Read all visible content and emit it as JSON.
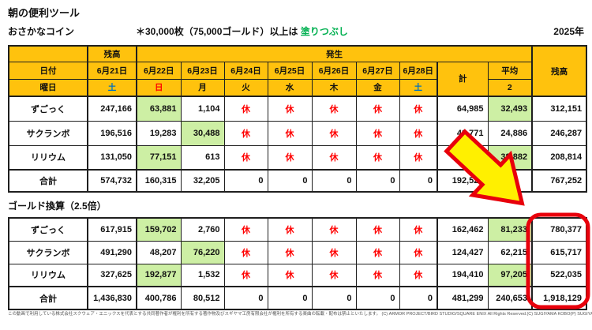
{
  "page": {
    "title": "朝の便利ツール",
    "subtitle_left": "おさかなコイン",
    "note_prefix": "＊30,000枚（75,000ゴールド）以上は ",
    "note_highlight": "塗りつぶし",
    "year": "2025年",
    "table2_title": "ゴールド換算（2.5倍）",
    "footer": "この動画で利用している株式会社スクウェア・エニックスを代表とする共同著作者が権利を所有する著作物及びスギヤマ工房有限会社が権利を所有する楽曲の転載・配布は禁止といたします。 (C) ARMOR PROJECT/BIRD STUDIO/SQUARE ENIX All Rights Reserved.(C) SUGIYAMA KOBO(P) SUGIYAMA KOBO"
  },
  "colors": {
    "header_yellow": "#FFC20D",
    "highlight_green": "#CDEFA4",
    "rest_red": "#FF0000",
    "saturday_blue": "#0070C0",
    "note_green": "#00B050",
    "annotation_arrow_fill": "#FFF000",
    "annotation_red": "#E8000B"
  },
  "table1": {
    "rows": [
      {
        "cells": [
          {
            "v": "",
            "cls": "hd"
          },
          {
            "v": "残高",
            "cls": "hd"
          },
          {
            "v": "発生",
            "cls": "hd",
            "cs": 9
          },
          {
            "v": "残高",
            "cls": "hd",
            "rs": 3
          }
        ]
      },
      {
        "cells": [
          {
            "v": "日付",
            "cls": "hd"
          },
          {
            "v": "6月21日",
            "cls": "hd"
          },
          {
            "v": "6月22日",
            "cls": "hd"
          },
          {
            "v": "6月23日",
            "cls": "hd"
          },
          {
            "v": "6月24日",
            "cls": "hd"
          },
          {
            "v": "6月25日",
            "cls": "hd"
          },
          {
            "v": "6月26日",
            "cls": "hd"
          },
          {
            "v": "6月27日",
            "cls": "hd"
          },
          {
            "v": "6月28日",
            "cls": "hd"
          },
          {
            "v": "計",
            "cls": "hd",
            "rs": 2
          },
          {
            "v": "平均",
            "cls": "hd"
          }
        ]
      },
      {
        "cells": [
          {
            "v": "曜日",
            "cls": "hd"
          },
          {
            "v": "土",
            "cls": "hd sat"
          },
          {
            "v": "日",
            "cls": "hd sun"
          },
          {
            "v": "月",
            "cls": "hd"
          },
          {
            "v": "火",
            "cls": "hd"
          },
          {
            "v": "水",
            "cls": "hd"
          },
          {
            "v": "木",
            "cls": "hd"
          },
          {
            "v": "金",
            "cls": "hd"
          },
          {
            "v": "土",
            "cls": "hd sat"
          },
          {
            "v": "2",
            "cls": "hd"
          }
        ]
      },
      {
        "cells": [
          {
            "v": "ずごっく",
            "cls": "lbl"
          },
          {
            "v": "247,166",
            "cls": "num"
          },
          {
            "v": "63,881",
            "cls": "num green"
          },
          {
            "v": "1,104",
            "cls": "num"
          },
          {
            "v": "休",
            "cls": "rest"
          },
          {
            "v": "休",
            "cls": "rest"
          },
          {
            "v": "休",
            "cls": "rest"
          },
          {
            "v": "休",
            "cls": "rest"
          },
          {
            "v": "休",
            "cls": "rest"
          },
          {
            "v": "64,985",
            "cls": "num"
          },
          {
            "v": "32,493",
            "cls": "num green"
          },
          {
            "v": "312,151",
            "cls": "num"
          }
        ]
      },
      {
        "cells": [
          {
            "v": "サクランボ",
            "cls": "lbl"
          },
          {
            "v": "196,516",
            "cls": "num"
          },
          {
            "v": "19,283",
            "cls": "num"
          },
          {
            "v": "30,488",
            "cls": "num green"
          },
          {
            "v": "休",
            "cls": "rest"
          },
          {
            "v": "休",
            "cls": "rest"
          },
          {
            "v": "休",
            "cls": "rest"
          },
          {
            "v": "休",
            "cls": "rest"
          },
          {
            "v": "休",
            "cls": "rest"
          },
          {
            "v": "49,771",
            "cls": "num"
          },
          {
            "v": "24,886",
            "cls": "num"
          },
          {
            "v": "246,287",
            "cls": "num"
          }
        ]
      },
      {
        "cells": [
          {
            "v": "リリウム",
            "cls": "lbl"
          },
          {
            "v": "131,050",
            "cls": "num"
          },
          {
            "v": "77,151",
            "cls": "num green"
          },
          {
            "v": "613",
            "cls": "num"
          },
          {
            "v": "休",
            "cls": "rest"
          },
          {
            "v": "休",
            "cls": "rest"
          },
          {
            "v": "休",
            "cls": "rest"
          },
          {
            "v": "休",
            "cls": "rest"
          },
          {
            "v": "休",
            "cls": "rest"
          },
          {
            "v": "77,764",
            "cls": "num"
          },
          {
            "v": "38,882",
            "cls": "num green"
          },
          {
            "v": "208,814",
            "cls": "num"
          }
        ]
      },
      {
        "cells": [
          {
            "v": "合計",
            "cls": "lbl"
          },
          {
            "v": "574,732",
            "cls": "num"
          },
          {
            "v": "160,315",
            "cls": "num"
          },
          {
            "v": "32,205",
            "cls": "num"
          },
          {
            "v": "0",
            "cls": "num"
          },
          {
            "v": "0",
            "cls": "num"
          },
          {
            "v": "0",
            "cls": "num"
          },
          {
            "v": "0",
            "cls": "num"
          },
          {
            "v": "0",
            "cls": "num"
          },
          {
            "v": "192,520",
            "cls": "num"
          },
          {
            "v": "",
            "cls": "num"
          },
          {
            "v": "767,252",
            "cls": "num"
          }
        ]
      }
    ]
  },
  "table2": {
    "rows": [
      {
        "cells": [
          {
            "v": "ずごっく",
            "cls": "lbl"
          },
          {
            "v": "617,915",
            "cls": "num"
          },
          {
            "v": "159,702",
            "cls": "num green"
          },
          {
            "v": "2,760",
            "cls": "num"
          },
          {
            "v": "休",
            "cls": "rest"
          },
          {
            "v": "休",
            "cls": "rest"
          },
          {
            "v": "休",
            "cls": "rest"
          },
          {
            "v": "休",
            "cls": "rest"
          },
          {
            "v": "休",
            "cls": "rest"
          },
          {
            "v": "162,462",
            "cls": "num"
          },
          {
            "v": "81,233",
            "cls": "num green"
          },
          {
            "v": "780,377",
            "cls": "num"
          }
        ]
      },
      {
        "cells": [
          {
            "v": "サクランボ",
            "cls": "lbl"
          },
          {
            "v": "491,290",
            "cls": "num"
          },
          {
            "v": "48,207",
            "cls": "num"
          },
          {
            "v": "76,220",
            "cls": "num green"
          },
          {
            "v": "休",
            "cls": "rest"
          },
          {
            "v": "休",
            "cls": "rest"
          },
          {
            "v": "休",
            "cls": "rest"
          },
          {
            "v": "休",
            "cls": "rest"
          },
          {
            "v": "休",
            "cls": "rest"
          },
          {
            "v": "124,427",
            "cls": "num"
          },
          {
            "v": "62,215",
            "cls": "num"
          },
          {
            "v": "615,717",
            "cls": "num"
          }
        ]
      },
      {
        "cells": [
          {
            "v": "リリウム",
            "cls": "lbl"
          },
          {
            "v": "327,625",
            "cls": "num"
          },
          {
            "v": "192,877",
            "cls": "num green"
          },
          {
            "v": "1,532",
            "cls": "num"
          },
          {
            "v": "休",
            "cls": "rest"
          },
          {
            "v": "休",
            "cls": "rest"
          },
          {
            "v": "休",
            "cls": "rest"
          },
          {
            "v": "休",
            "cls": "rest"
          },
          {
            "v": "休",
            "cls": "rest"
          },
          {
            "v": "194,410",
            "cls": "num"
          },
          {
            "v": "97,205",
            "cls": "num green"
          },
          {
            "v": "522,035",
            "cls": "num"
          }
        ]
      },
      {
        "cells": [
          {
            "v": "合計",
            "cls": "lbl"
          },
          {
            "v": "1,436,830",
            "cls": "num"
          },
          {
            "v": "400,786",
            "cls": "num"
          },
          {
            "v": "80,512",
            "cls": "num"
          },
          {
            "v": "0",
            "cls": "num"
          },
          {
            "v": "0",
            "cls": "num"
          },
          {
            "v": "0",
            "cls": "num"
          },
          {
            "v": "0",
            "cls": "num"
          },
          {
            "v": "0",
            "cls": "num"
          },
          {
            "v": "481,299",
            "cls": "num"
          },
          {
            "v": "240,653",
            "cls": "num"
          },
          {
            "v": "1,918,129",
            "cls": "num"
          }
        ]
      }
    ]
  },
  "annotations": {
    "arrow": "yellow-block-arrow-pointing-to-balance-column",
    "circle": "red-rounded-rectangle-around-balance-column"
  }
}
